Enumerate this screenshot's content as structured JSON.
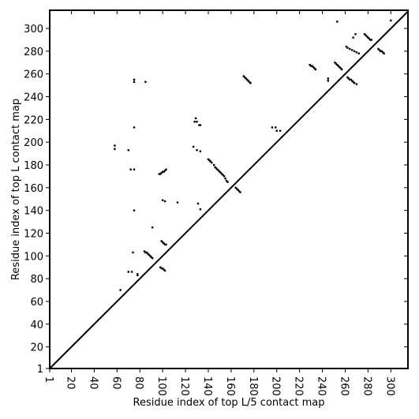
{
  "chart_data": {
    "type": "scatter",
    "xlabel": "Residue index of top L/5 contact map",
    "ylabel": "Residue index of top L contact map",
    "xlim": [
      1,
      315
    ],
    "ylim": [
      1,
      316
    ],
    "xticks": [
      1,
      20,
      40,
      60,
      80,
      100,
      120,
      140,
      160,
      180,
      200,
      220,
      240,
      260,
      280,
      300
    ],
    "yticks": [
      1,
      20,
      40,
      60,
      80,
      100,
      120,
      140,
      160,
      180,
      200,
      220,
      240,
      260,
      280,
      300
    ],
    "diagonal": true,
    "series": [
      {
        "color": "#000000",
        "x": [
          84,
          85,
          86,
          87,
          88,
          89,
          90,
          91,
          98,
          99,
          100,
          101,
          102,
          99,
          100,
          101,
          102,
          103,
          97,
          98,
          99,
          100,
          101,
          102,
          103,
          100,
          102,
          113,
          131,
          133,
          129,
          130,
          128,
          132,
          133,
          127,
          130,
          133,
          58,
          58,
          70,
          72,
          75,
          75,
          75,
          74,
          70,
          73,
          78,
          78,
          63,
          75,
          75,
          85,
          91,
          140,
          141,
          142,
          143,
          145,
          146,
          147,
          148,
          149,
          150,
          151,
          152,
          153,
          154,
          155,
          156,
          157,
          164,
          165,
          166,
          167,
          168,
          171,
          172,
          173,
          174,
          175,
          176,
          177,
          196,
          199,
          200,
          203,
          229,
          230,
          231,
          232,
          233,
          234,
          245,
          245,
          251,
          252,
          253,
          254,
          255,
          256,
          257,
          253,
          262,
          263,
          264,
          265,
          266,
          267,
          268,
          270,
          261,
          262,
          264,
          266,
          268,
          270,
          272,
          267,
          269,
          277,
          278,
          279,
          280,
          281,
          282,
          283,
          289,
          290,
          291,
          292,
          293,
          294,
          300
        ],
        "values": [
          104,
          103,
          103,
          102,
          101,
          100,
          99,
          98,
          90,
          89,
          89,
          88,
          87,
          113,
          112,
          111,
          110,
          110,
          172,
          172,
          173,
          174,
          174,
          175,
          176,
          149,
          148,
          147,
          146,
          141,
          221,
          218,
          218,
          215,
          215,
          196,
          193,
          192,
          197,
          194,
          193,
          176,
          176,
          213,
          140,
          103,
          86,
          86,
          84,
          83,
          70,
          255,
          253,
          253,
          125,
          185,
          184,
          183,
          182,
          180,
          178,
          177,
          176,
          175,
          174,
          173,
          172,
          171,
          170,
          168,
          166,
          165,
          160,
          159,
          158,
          157,
          156,
          258,
          257,
          256,
          255,
          254,
          253,
          252,
          213,
          213,
          210,
          210,
          268,
          267,
          267,
          266,
          265,
          264,
          256,
          254,
          270,
          269,
          268,
          267,
          266,
          265,
          264,
          306,
          257,
          256,
          255,
          255,
          254,
          253,
          252,
          251,
          284,
          283,
          282,
          281,
          280,
          279,
          278,
          292,
          295,
          295,
          294,
          293,
          292,
          291,
          290,
          290,
          282,
          281,
          280,
          280,
          279,
          278,
          307
        ]
      }
    ]
  }
}
